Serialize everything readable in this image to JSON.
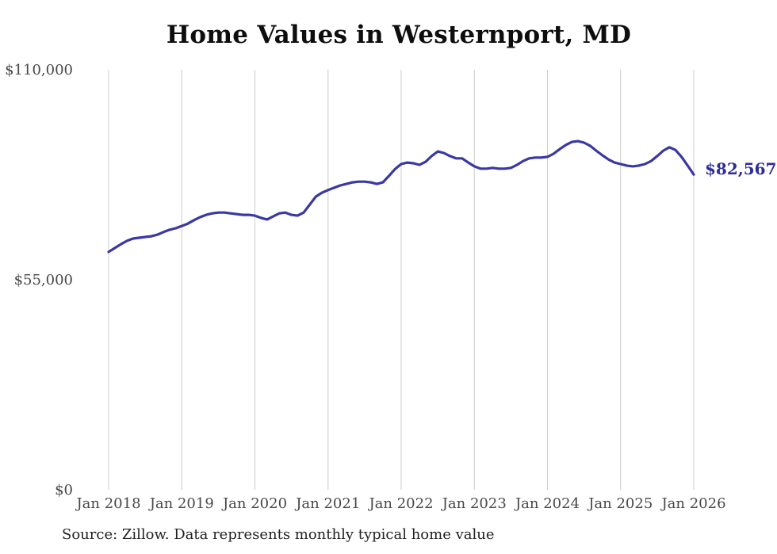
{
  "page": {
    "title": "Home Values in Westernport, MD",
    "source_note": "Source: Zillow. Data represents monthly typical home value"
  },
  "chart_data": {
    "type": "line",
    "title": "Home Values in Westernport, MD",
    "frequency": "monthly",
    "x_tick_labels": [
      "Jan 2018",
      "Jan 2019",
      "Jan 2020",
      "Jan 2021",
      "Jan 2022",
      "Jan 2023",
      "Jan 2024",
      "Jan 2025",
      "Jan 2026"
    ],
    "y_tick_labels": [
      "$0",
      "$55,000",
      "$110,000"
    ],
    "y_ticks": [
      0,
      55000,
      110000
    ],
    "ylim": [
      0,
      110000
    ],
    "grid": "vertical-only",
    "legend": "none",
    "end_label": "$82,567",
    "final_value": 82567,
    "xlabel": "",
    "ylabel": "",
    "colors": {
      "line": "#3a38a3",
      "end_label": "#2e2c99",
      "grid": "#cccccc",
      "axis_text": "#484848",
      "title_text": "#0e0e0e",
      "source_text": "#222222",
      "background": "#ffffff"
    },
    "values": [
      62300,
      63300,
      64300,
      65200,
      65800,
      66000,
      66200,
      66400,
      66800,
      67500,
      68100,
      68500,
      69100,
      69700,
      70600,
      71400,
      72000,
      72400,
      72600,
      72600,
      72400,
      72200,
      72000,
      72000,
      71800,
      71200,
      70800,
      71600,
      72400,
      72600,
      72000,
      71800,
      72600,
      74700,
      76800,
      77800,
      78500,
      79100,
      79700,
      80100,
      80500,
      80700,
      80700,
      80500,
      80100,
      80500,
      82200,
      84000,
      85300,
      85700,
      85500,
      85100,
      85900,
      87400,
      88600,
      88200,
      87400,
      86800,
      86800,
      85700,
      84700,
      84100,
      84100,
      84300,
      84100,
      84100,
      84300,
      85100,
      86100,
      86800,
      87000,
      87000,
      87200,
      88000,
      89200,
      90300,
      91100,
      91300,
      90900,
      90100,
      88800,
      87600,
      86500,
      85700,
      85300,
      84900,
      84700,
      84900,
      85300,
      86100,
      87400,
      88800,
      89700,
      89000,
      87200,
      84900,
      82567
    ]
  }
}
